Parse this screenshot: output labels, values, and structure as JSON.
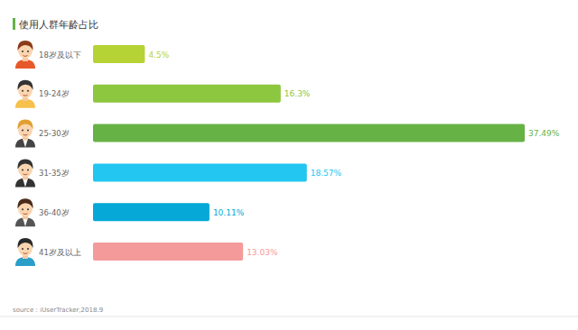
{
  "chart_data": {
    "type": "bar",
    "title": "使用人群年龄占比",
    "source": "source：iUserTracker,2018.9",
    "orientation": "horizontal",
    "categories": [
      "18岁及以下",
      "19-24岁",
      "25-30岁",
      "31-35岁",
      "36-40岁",
      "41岁及以上"
    ],
    "values": [
      4.5,
      16.3,
      37.49,
      18.57,
      10.11,
      13.03
    ],
    "value_labels": [
      "4.5%",
      "16.3%",
      "37.49%",
      "18.57%",
      "10.11%",
      "13.03%"
    ],
    "colors": [
      "#b5d334",
      "#8dc63f",
      "#66b245",
      "#22c6f0",
      "#06a8d8",
      "#f49a9a"
    ],
    "xlim": [
      0,
      40
    ],
    "data_labels": true,
    "tick_labels": false,
    "grid": false
  }
}
